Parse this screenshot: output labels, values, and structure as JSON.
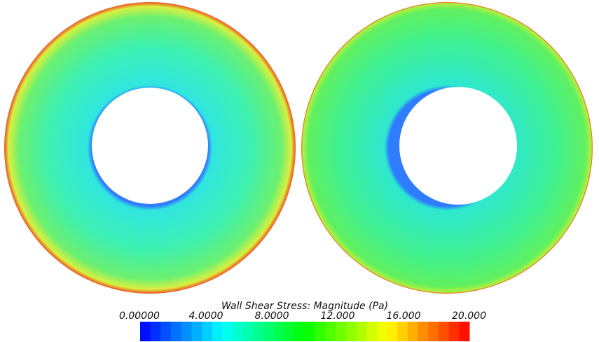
{
  "chart_data": {
    "type": "contour",
    "colorbar_title": "Wall Shear Stress: Magnitude (Pa)",
    "clim": [
      0,
      20
    ],
    "cticks": [
      {
        "value": 0,
        "label": "0.00000"
      },
      {
        "value": 4,
        "label": "4.0000"
      },
      {
        "value": 8,
        "label": "8.0000"
      },
      {
        "value": 12,
        "label": "12.000"
      },
      {
        "value": 16,
        "label": "16.000"
      },
      {
        "value": 20,
        "label": "20.000"
      }
    ],
    "colormap": [
      "#0000ff",
      "#00ffff",
      "#00ff00",
      "#ffff00",
      "#ff0000"
    ]
  }
}
